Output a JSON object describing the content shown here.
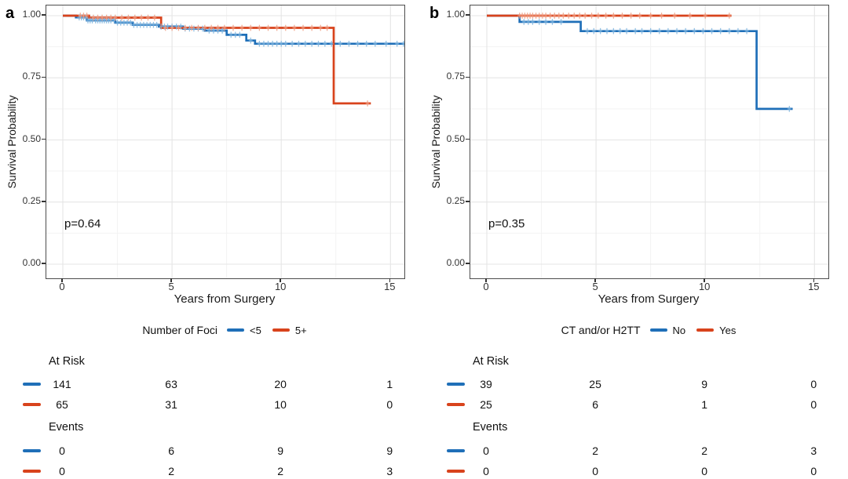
{
  "colors": {
    "blue": "#1F6FB8",
    "red": "#D8431C",
    "censor_blue": "#7FB6E0",
    "censor_red": "#F09E82",
    "grid_major": "#E5E5E5",
    "grid_minor": "#F3F3F3",
    "border": "#4D4D4D",
    "text": "#1A1A1A"
  },
  "chart_data": [
    {
      "type": "line",
      "subtype": "kaplan-meier-step",
      "panel_label": "a",
      "xlabel": "Years from Surgery",
      "ylabel": "Survival Probability",
      "p_text": "p=0.64",
      "xlim": [
        0,
        15.7
      ],
      "ylim": [
        0,
        1.0
      ],
      "x_ticks": [
        0,
        5,
        10,
        15
      ],
      "x_minor_ticks": [
        2.5,
        7.5,
        12.5
      ],
      "y_ticks": [
        1.0,
        0.75,
        0.5,
        0.25,
        0.0
      ],
      "y_tick_labels": [
        "1.00",
        "0.75",
        "0.50",
        "0.25",
        "0.00"
      ],
      "y_minor_ticks": [
        0.875,
        0.75,
        0.625,
        0.5,
        0.375,
        0.25,
        0.125
      ],
      "grid": true,
      "legend": {
        "title": "Number of Foci",
        "position": "bottom",
        "items": [
          {
            "label": "<5",
            "color": "blue"
          },
          {
            "label": "5+",
            "color": "red"
          }
        ]
      },
      "series": [
        {
          "name": "<5",
          "color": "blue",
          "points": [
            [
              0,
              1.0
            ],
            [
              0.6,
              0.993
            ],
            [
              1.1,
              0.981
            ],
            [
              2.4,
              0.972
            ],
            [
              3.2,
              0.963
            ],
            [
              4.4,
              0.956
            ],
            [
              5.5,
              0.948
            ],
            [
              6.5,
              0.94
            ],
            [
              7.5,
              0.923
            ],
            [
              8.4,
              0.9
            ],
            [
              8.8,
              0.887
            ]
          ],
          "end_x": 15.7,
          "censor_x": [
            0.75,
            0.85,
            0.95,
            1.05,
            1.15,
            1.25,
            1.35,
            1.5,
            1.6,
            1.7,
            1.8,
            1.9,
            2.0,
            2.1,
            2.2,
            2.35,
            2.5,
            2.65,
            2.8,
            2.95,
            3.1,
            3.25,
            3.4,
            3.55,
            3.7,
            3.85,
            4.0,
            4.15,
            4.3,
            4.5,
            4.65,
            4.8,
            5.0,
            5.2,
            5.4,
            5.6,
            5.8,
            6.0,
            6.2,
            6.4,
            6.7,
            6.9,
            7.1,
            7.3,
            7.7,
            7.9,
            8.1,
            8.6,
            9.0,
            9.2,
            9.4,
            9.6,
            9.8,
            10.0,
            10.2,
            10.5,
            10.8,
            11.1,
            11.4,
            11.7,
            12.0,
            12.3,
            12.7,
            13.1,
            13.5,
            13.9,
            14.3,
            14.8,
            15.3,
            15.6
          ]
        },
        {
          "name": "5+",
          "color": "red",
          "points": [
            [
              0,
              1.0
            ],
            [
              1.2,
              0.992
            ],
            [
              4.5,
              0.951
            ],
            [
              12.4,
              0.647
            ]
          ],
          "end_x": 14.1,
          "censor_x": [
            0.8,
            0.95,
            1.1,
            1.4,
            1.6,
            1.8,
            2.0,
            2.2,
            2.4,
            2.7,
            3.0,
            3.3,
            3.6,
            3.9,
            4.2,
            4.7,
            5.0,
            5.3,
            5.6,
            5.9,
            6.2,
            6.5,
            6.8,
            7.1,
            7.4,
            7.8,
            8.2,
            8.6,
            9.0,
            9.4,
            9.8,
            10.2,
            10.6,
            11.0,
            11.4,
            11.8,
            12.1,
            13.95
          ]
        }
      ],
      "risk_table": {
        "at_risk_header": "At Risk",
        "events_header": "Events",
        "time_points": [
          0,
          5,
          10,
          15
        ],
        "at_risk": [
          {
            "color": "blue",
            "values": [
              "141",
              "63",
              "20",
              "1"
            ]
          },
          {
            "color": "red",
            "values": [
              "65",
              "31",
              "10",
              "0"
            ]
          }
        ],
        "events": [
          {
            "color": "blue",
            "values": [
              "0",
              "6",
              "9",
              "9"
            ]
          },
          {
            "color": "red",
            "values": [
              "0",
              "2",
              "2",
              "3"
            ]
          }
        ]
      }
    },
    {
      "type": "line",
      "subtype": "kaplan-meier-step",
      "panel_label": "b",
      "xlabel": "Years from Surgery",
      "ylabel": "Survival Probability",
      "p_text": "p=0.35",
      "xlim": [
        0,
        15.7
      ],
      "ylim": [
        0,
        1.0
      ],
      "x_ticks": [
        0,
        5,
        10,
        15
      ],
      "x_minor_ticks": [
        2.5,
        7.5,
        12.5
      ],
      "y_ticks": [
        1.0,
        0.75,
        0.5,
        0.25,
        0.0
      ],
      "y_tick_labels": [
        "1.00",
        "0.75",
        "0.50",
        "0.25",
        "0.00"
      ],
      "y_minor_ticks": [
        0.875,
        0.75,
        0.625,
        0.5,
        0.375,
        0.25,
        0.125
      ],
      "grid": true,
      "legend": {
        "title": "CT and/or H2TT",
        "position": "bottom",
        "items": [
          {
            "label": "No",
            "color": "blue"
          },
          {
            "label": "Yes",
            "color": "red"
          }
        ]
      },
      "series": [
        {
          "name": "No",
          "color": "blue",
          "points": [
            [
              0,
              1.0
            ],
            [
              1.5,
              0.975
            ],
            [
              4.3,
              0.938
            ],
            [
              12.35,
              0.625
            ]
          ],
          "end_x": 14.0,
          "censor_x": [
            1.7,
            1.9,
            2.1,
            2.4,
            2.7,
            3.0,
            3.4,
            4.6,
            4.9,
            5.2,
            5.5,
            5.8,
            6.1,
            6.4,
            6.8,
            7.1,
            7.5,
            7.9,
            8.3,
            8.7,
            9.1,
            9.5,
            9.9,
            10.3,
            10.7,
            11.1,
            11.5,
            11.9,
            13.85
          ]
        },
        {
          "name": "Yes",
          "color": "red",
          "points": [
            [
              0,
              1.0
            ]
          ],
          "end_x": 11.2,
          "censor_x": [
            1.5,
            1.62,
            1.74,
            1.86,
            1.98,
            2.1,
            2.25,
            2.4,
            2.55,
            2.7,
            2.9,
            3.1,
            3.3,
            3.5,
            3.75,
            4.0,
            4.25,
            4.5,
            4.8,
            5.1,
            5.45,
            5.8,
            6.2,
            6.6,
            7.0,
            7.5,
            8.0,
            8.6,
            9.3,
            10.0,
            11.1
          ]
        }
      ],
      "risk_table": {
        "at_risk_header": "At Risk",
        "events_header": "Events",
        "time_points": [
          0,
          5,
          10,
          15
        ],
        "at_risk": [
          {
            "color": "blue",
            "values": [
              "39",
              "25",
              "9",
              "0"
            ]
          },
          {
            "color": "red",
            "values": [
              "25",
              "6",
              "1",
              "0"
            ]
          }
        ],
        "events": [
          {
            "color": "blue",
            "values": [
              "0",
              "2",
              "2",
              "3"
            ]
          },
          {
            "color": "red",
            "values": [
              "0",
              "0",
              "0",
              "0"
            ]
          }
        ]
      }
    }
  ]
}
